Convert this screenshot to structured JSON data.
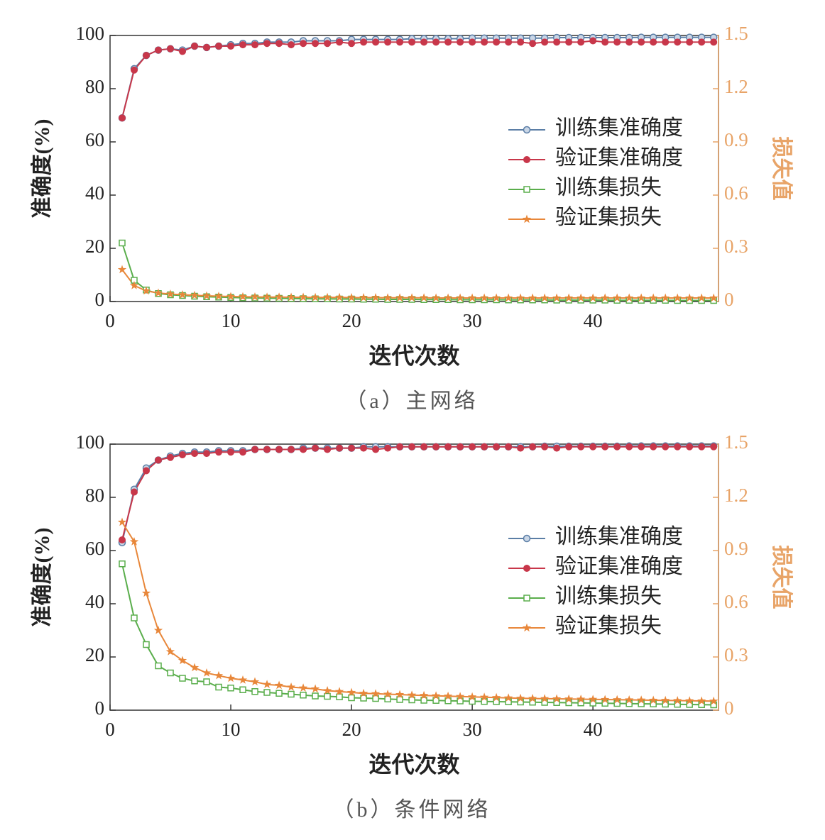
{
  "chart_data": [
    {
      "type": "line",
      "caption": "（a）主网络",
      "xlabel": "迭代次数",
      "ylabel": "准确度(%)",
      "y2label": "损失值",
      "legend": "right",
      "xlim": [
        0,
        50.4
      ],
      "xticks": [
        0,
        10,
        20,
        30,
        40
      ],
      "ylim": [
        0,
        100
      ],
      "yticks": [
        0,
        20,
        40,
        60,
        80,
        100
      ],
      "y2lim": [
        0,
        1.5
      ],
      "y2ticks": [
        0,
        0.3,
        0.6,
        0.9,
        1.2,
        1.5
      ],
      "x": [
        1,
        2,
        3,
        4,
        5,
        6,
        7,
        8,
        9,
        10,
        11,
        12,
        13,
        14,
        15,
        16,
        17,
        18,
        19,
        20,
        21,
        22,
        23,
        24,
        25,
        26,
        27,
        28,
        29,
        30,
        31,
        32,
        33,
        34,
        35,
        36,
        37,
        38,
        39,
        40,
        41,
        42,
        43,
        44,
        45,
        46,
        47,
        48,
        49,
        50
      ],
      "series": [
        {
          "name": "训练集准确度",
          "color": "#5b7ea6",
          "marker": "circle",
          "values": [
            69,
            87.5,
            92.5,
            94.5,
            95,
            94.5,
            96,
            95.5,
            96,
            96.5,
            97,
            97,
            97.5,
            97.5,
            97.5,
            98,
            98,
            98,
            98,
            98.5,
            98.5,
            98.5,
            98.5,
            98.5,
            98.8,
            98.8,
            98.8,
            98.8,
            98.8,
            99,
            99,
            99,
            99,
            99,
            99,
            99,
            99.2,
            99.2,
            99.2,
            99.2,
            99.2,
            99.2,
            99.2,
            99.3,
            99.3,
            99.3,
            99.3,
            99.3,
            99.3,
            99.3
          ]
        },
        {
          "name": "验证集准确度",
          "color": "#c8374a",
          "marker": "filled-circle",
          "values": [
            69,
            87,
            92.5,
            94.5,
            95,
            94,
            96,
            95.5,
            96,
            96,
            96.5,
            96.5,
            97,
            97,
            96.5,
            97,
            97,
            97,
            97.5,
            97,
            97.5,
            97.5,
            97.5,
            97.5,
            97.5,
            97.5,
            97.5,
            97.5,
            97.5,
            97.5,
            97.5,
            97.5,
            97.5,
            97.5,
            97,
            97.5,
            97.5,
            97.5,
            97.5,
            98,
            97.5,
            97.5,
            97.5,
            97.5,
            97.5,
            97.5,
            97.5,
            97.5,
            97.5,
            97.5
          ]
        },
        {
          "name": "训练集损失",
          "color": "#5aae4c",
          "marker": "square",
          "axis": "y2",
          "values": [
            0.33,
            0.12,
            0.065,
            0.045,
            0.038,
            0.034,
            0.03,
            0.027,
            0.025,
            0.023,
            0.021,
            0.02,
            0.019,
            0.018,
            0.017,
            0.016,
            0.015,
            0.015,
            0.014,
            0.014,
            0.013,
            0.013,
            0.012,
            0.012,
            0.012,
            0.011,
            0.011,
            0.011,
            0.01,
            0.01,
            0.01,
            0.01,
            0.009,
            0.009,
            0.009,
            0.009,
            0.008,
            0.008,
            0.008,
            0.008,
            0.008,
            0.007,
            0.007,
            0.007,
            0.007,
            0.007,
            0.006,
            0.006,
            0.006,
            0.006
          ]
        },
        {
          "name": "验证集损失",
          "color": "#e8873a",
          "marker": "star",
          "axis": "y2",
          "values": [
            0.18,
            0.09,
            0.06,
            0.048,
            0.042,
            0.038,
            0.035,
            0.032,
            0.03,
            0.028,
            0.027,
            0.026,
            0.025,
            0.025,
            0.024,
            0.024,
            0.023,
            0.023,
            0.023,
            0.022,
            0.022,
            0.022,
            0.021,
            0.021,
            0.021,
            0.021,
            0.02,
            0.02,
            0.02,
            0.02,
            0.02,
            0.02,
            0.02,
            0.02,
            0.02,
            0.02,
            0.02,
            0.02,
            0.02,
            0.02,
            0.02,
            0.02,
            0.02,
            0.02,
            0.02,
            0.02,
            0.02,
            0.02,
            0.02,
            0.02
          ]
        }
      ]
    },
    {
      "type": "line",
      "caption": "（b）条件网络",
      "xlabel": "迭代次数",
      "ylabel": "准确度(%)",
      "y2label": "损失值",
      "legend": "right",
      "xlim": [
        0,
        50.4
      ],
      "xticks": [
        0,
        10,
        20,
        30,
        40
      ],
      "ylim": [
        0,
        100
      ],
      "yticks": [
        0,
        20,
        40,
        60,
        80,
        100
      ],
      "y2lim": [
        0,
        1.5
      ],
      "y2ticks": [
        0,
        0.3,
        0.6,
        0.9,
        1.2,
        1.5
      ],
      "x": [
        1,
        2,
        3,
        4,
        5,
        6,
        7,
        8,
        9,
        10,
        11,
        12,
        13,
        14,
        15,
        16,
        17,
        18,
        19,
        20,
        21,
        22,
        23,
        24,
        25,
        26,
        27,
        28,
        29,
        30,
        31,
        32,
        33,
        34,
        35,
        36,
        37,
        38,
        39,
        40,
        41,
        42,
        43,
        44,
        45,
        46,
        47,
        48,
        49,
        50
      ],
      "series": [
        {
          "name": "训练集准确度",
          "color": "#5b7ea6",
          "marker": "circle",
          "values": [
            63,
            83,
            91,
            94,
            95.5,
            96.5,
            97,
            97,
            97.5,
            97.5,
            97.5,
            98,
            98,
            98,
            98,
            98.5,
            98.5,
            98.5,
            98.5,
            98.5,
            99,
            99,
            99,
            99,
            99,
            99,
            99,
            99,
            99,
            99,
            99,
            99,
            99,
            99,
            99,
            99.2,
            99.2,
            99.2,
            99.2,
            99.2,
            99.2,
            99.2,
            99.3,
            99.3,
            99.3,
            99.3,
            99.3,
            99.3,
            99.3,
            99.3
          ]
        },
        {
          "name": "验证集准确度",
          "color": "#c8374a",
          "marker": "filled-circle",
          "values": [
            64,
            82,
            90,
            94,
            95,
            96,
            96.5,
            96.5,
            97,
            97,
            97,
            98,
            98,
            98,
            98,
            98,
            98.5,
            98,
            98.5,
            98.5,
            98.5,
            98,
            98.5,
            99,
            99,
            99,
            99,
            99,
            99,
            99,
            99,
            99,
            99,
            98.5,
            99,
            99,
            98.5,
            99,
            99,
            99,
            99,
            99,
            99,
            99,
            99,
            99,
            99,
            99,
            99,
            99
          ]
        },
        {
          "name": "训练集损失",
          "color": "#5aae4c",
          "marker": "square",
          "axis": "y2",
          "values": [
            0.825,
            0.52,
            0.37,
            0.25,
            0.21,
            0.18,
            0.165,
            0.16,
            0.13,
            0.125,
            0.115,
            0.105,
            0.1,
            0.095,
            0.09,
            0.085,
            0.08,
            0.078,
            0.075,
            0.07,
            0.068,
            0.066,
            0.063,
            0.06,
            0.058,
            0.056,
            0.055,
            0.053,
            0.052,
            0.05,
            0.049,
            0.048,
            0.047,
            0.046,
            0.045,
            0.044,
            0.043,
            0.042,
            0.041,
            0.04,
            0.039,
            0.038,
            0.037,
            0.036,
            0.035,
            0.034,
            0.033,
            0.032,
            0.031,
            0.03
          ]
        },
        {
          "name": "验证集损失",
          "color": "#e8873a",
          "marker": "star",
          "axis": "y2",
          "values": [
            1.06,
            0.95,
            0.66,
            0.45,
            0.33,
            0.28,
            0.24,
            0.21,
            0.195,
            0.18,
            0.17,
            0.16,
            0.145,
            0.14,
            0.13,
            0.125,
            0.12,
            0.11,
            0.105,
            0.1,
            0.095,
            0.093,
            0.09,
            0.088,
            0.085,
            0.083,
            0.081,
            0.079,
            0.077,
            0.075,
            0.073,
            0.071,
            0.069,
            0.067,
            0.066,
            0.065,
            0.064,
            0.063,
            0.062,
            0.061,
            0.06,
            0.059,
            0.058,
            0.057,
            0.056,
            0.055,
            0.054,
            0.053,
            0.052,
            0.051
          ]
        }
      ]
    }
  ]
}
